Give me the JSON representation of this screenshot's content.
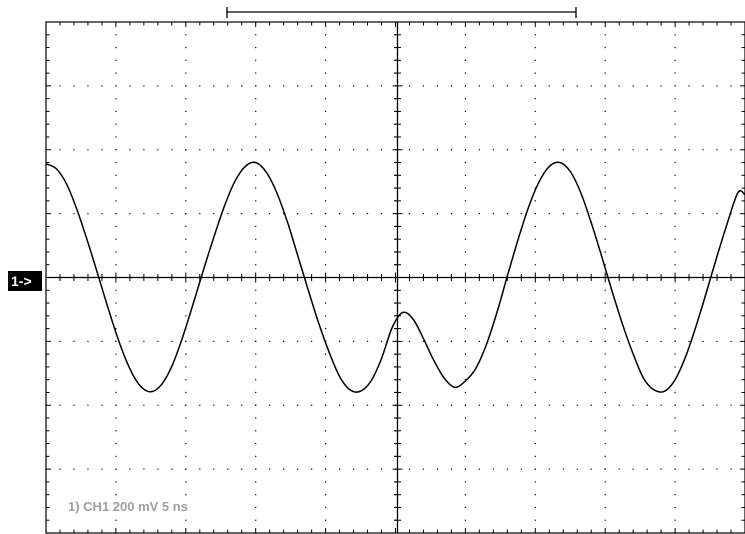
{
  "chart_data": {
    "type": "line",
    "instrument": "oscilloscope",
    "grid": true,
    "divisions": {
      "horizontal": 10,
      "vertical": 8
    },
    "xlim_div": [
      0,
      10
    ],
    "ylim_div": [
      -4,
      4
    ],
    "channel_marker": "1->",
    "readout": "1) CH1  200 mV   5 ns",
    "series": [
      {
        "x_div": [
          0.0,
          0.15,
          0.3,
          0.45,
          0.6,
          0.75,
          0.9,
          1.05,
          1.2,
          1.35,
          1.5,
          1.65,
          1.8,
          1.95,
          2.1,
          2.25,
          2.4,
          2.55,
          2.7,
          2.85,
          3.0,
          3.15,
          3.3,
          3.45,
          3.6,
          3.75,
          3.9,
          4.05,
          4.2,
          4.35,
          4.5,
          4.65,
          4.8,
          4.95,
          5.1,
          5.25,
          5.4,
          5.55,
          5.7,
          5.85,
          6.0,
          6.15,
          6.3,
          6.45,
          6.6,
          6.75,
          6.9,
          7.05,
          7.2,
          7.35,
          7.5,
          7.65,
          7.8,
          7.95,
          8.1,
          8.25,
          8.4,
          8.55,
          8.7,
          8.85,
          9.0,
          9.15,
          9.3,
          9.45,
          9.6,
          9.75,
          9.9,
          10.0
        ],
        "y_div": [
          1.78,
          1.7,
          1.45,
          1.04,
          0.55,
          0.02,
          -0.52,
          -1.02,
          -1.43,
          -1.7,
          -1.79,
          -1.68,
          -1.39,
          -0.95,
          -0.43,
          0.11,
          0.63,
          1.11,
          1.5,
          1.74,
          1.8,
          1.65,
          1.33,
          0.88,
          0.35,
          -0.19,
          -0.71,
          -1.17,
          -1.55,
          -1.76,
          -1.78,
          -1.62,
          -1.27,
          -0.79,
          -0.55,
          -0.65,
          -0.96,
          -1.3,
          -1.58,
          -1.72,
          -1.62,
          -1.42,
          -1.05,
          -0.55,
          0.02,
          0.58,
          1.09,
          1.49,
          1.74,
          1.8,
          1.66,
          1.33,
          0.86,
          0.33,
          -0.22,
          -0.74,
          -1.2,
          -1.58,
          -1.76,
          -1.78,
          -1.6,
          -1.24,
          -0.76,
          -0.22,
          0.33,
          0.86,
          1.33,
          1.3
        ]
      }
    ]
  }
}
